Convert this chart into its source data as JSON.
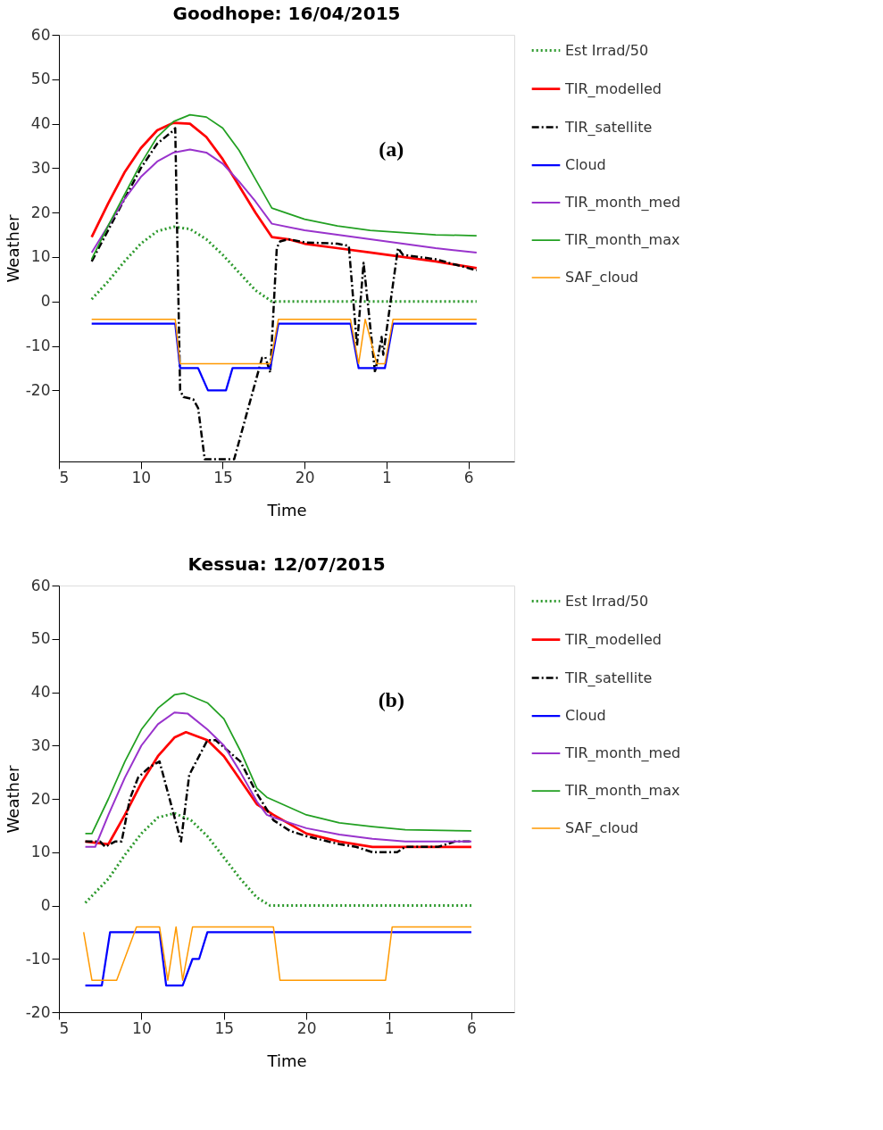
{
  "chart_data": [
    {
      "type": "line",
      "title": "Goodhope: 16/04/2015",
      "xlabel": "Time",
      "ylabel": "Weather",
      "annotations": [
        "(a)"
      ],
      "xlim": [
        "2015-04-16T05:00",
        "2015-04-17T08:48"
      ],
      "xticks": [
        {
          "value": "2015-04-16T05:00",
          "label": "5"
        },
        {
          "value": "2015-04-16T10:00",
          "label": "10"
        },
        {
          "value": "2015-04-16T15:00",
          "label": "15"
        },
        {
          "value": "2015-04-16T20:00",
          "label": "20"
        },
        {
          "value": "2015-04-17T01:00",
          "label": "1"
        },
        {
          "value": "2015-04-17T06:00",
          "label": "6"
        }
      ],
      "ylim": [
        -36,
        60
      ],
      "yticks": [
        -20,
        -10,
        0,
        10,
        20,
        30,
        40,
        50,
        60
      ],
      "grid": false,
      "legend": "top right",
      "marker": "none",
      "series": [
        {
          "name": "Est Irrad/50",
          "color": "#2e9a2e",
          "line_style": "dotted",
          "x": [
            "2015-04-16T07:00",
            "2015-04-16T08:00",
            "2015-04-16T09:00",
            "2015-04-16T10:00",
            "2015-04-16T11:00",
            "2015-04-16T12:00",
            "2015-04-16T13:00",
            "2015-04-16T14:00",
            "2015-04-16T15:00",
            "2015-04-16T16:00",
            "2015-04-16T17:00",
            "2015-04-16T18:00",
            "2015-04-17T06:30"
          ],
          "values": [
            0.5,
            4.5,
            9,
            13,
            15.8,
            16.8,
            16.3,
            14,
            10.5,
            6.5,
            2.5,
            0,
            0
          ]
        },
        {
          "name": "TIR_modelled",
          "color": "#ff0000",
          "line_style": "solid",
          "x": [
            "2015-04-16T07:00",
            "2015-04-16T08:00",
            "2015-04-16T09:00",
            "2015-04-16T10:00",
            "2015-04-16T11:00",
            "2015-04-16T12:00",
            "2015-04-16T13:00",
            "2015-04-16T14:00",
            "2015-04-16T15:00",
            "2015-04-16T16:00",
            "2015-04-16T17:00",
            "2015-04-16T18:00",
            "2015-04-16T19:00",
            "2015-04-16T20:00",
            "2015-04-16T22:00",
            "2015-04-17T00:00",
            "2015-04-17T02:00",
            "2015-04-17T04:00",
            "2015-04-17T06:30"
          ],
          "values": [
            14.5,
            22,
            29,
            34.5,
            38.5,
            40.2,
            40,
            37,
            32,
            26,
            20,
            14.5,
            14,
            13,
            12,
            11,
            10,
            9,
            7.5
          ]
        },
        {
          "name": "TIR_satellite",
          "color": "#000000",
          "line_style": "dashed",
          "x": [
            "2015-04-16T07:00",
            "2015-04-16T08:00",
            "2015-04-16T09:00",
            "2015-04-16T10:00",
            "2015-04-16T11:00",
            "2015-04-16T12:00",
            "2015-04-16T12:06",
            "2015-04-16T12:24",
            "2015-04-16T12:36",
            "2015-04-16T13:12",
            "2015-04-16T13:30",
            "2015-04-16T13:54",
            "2015-04-16T15:42",
            "2015-04-16T17:24",
            "2015-04-16T17:36",
            "2015-04-16T17:54",
            "2015-04-16T18:18",
            "2015-04-16T18:30",
            "2015-04-16T19:00",
            "2015-04-16T20:00",
            "2015-04-16T22:00",
            "2015-04-16T22:42",
            "2015-04-16T23:12",
            "2015-04-16T23:36",
            "2015-04-17T00:18",
            "2015-04-17T00:42",
            "2015-04-17T00:48",
            "2015-04-17T01:42",
            "2015-04-17T02:00",
            "2015-04-17T03:00",
            "2015-04-17T04:00",
            "2015-04-17T05:00",
            "2015-04-17T06:30"
          ],
          "values": [
            9,
            16,
            23,
            30,
            35.5,
            38.5,
            39,
            -20,
            -21.5,
            -22,
            -24,
            -35.5,
            -35.5,
            -12.7,
            -12.5,
            -16,
            12,
            13.5,
            14,
            13.3,
            13,
            12.5,
            -10,
            8.7,
            -16,
            -8,
            -12,
            12,
            10.5,
            10,
            9.5,
            8.5,
            7
          ]
        },
        {
          "name": "Cloud",
          "color": "#0000ff",
          "line_style": "solid",
          "x": [
            "2015-04-16T07:00",
            "2015-04-16T12:06",
            "2015-04-16T12:24",
            "2015-04-16T13:30",
            "2015-04-16T14:06",
            "2015-04-16T15:12",
            "2015-04-16T15:36",
            "2015-04-16T17:54",
            "2015-04-16T18:24",
            "2015-04-16T22:48",
            "2015-04-16T23:18",
            "2015-04-17T00:54",
            "2015-04-17T01:24",
            "2015-04-17T06:30"
          ],
          "values": [
            -5,
            -5,
            -15,
            -15,
            -20,
            -20,
            -15,
            -15,
            -5,
            -5,
            -15,
            -15,
            -5,
            -5
          ]
        },
        {
          "name": "TIR_month_med",
          "color": "#9933cc",
          "line_style": "solid",
          "x": [
            "2015-04-16T07:00",
            "2015-04-16T08:00",
            "2015-04-16T09:00",
            "2015-04-16T10:00",
            "2015-04-16T11:00",
            "2015-04-16T12:00",
            "2015-04-16T13:00",
            "2015-04-16T14:00",
            "2015-04-16T15:00",
            "2015-04-16T16:00",
            "2015-04-16T17:00",
            "2015-04-16T18:00",
            "2015-04-16T20:00",
            "2015-04-16T22:00",
            "2015-04-17T00:00",
            "2015-04-17T02:00",
            "2015-04-17T04:00",
            "2015-04-17T06:30"
          ],
          "values": [
            11,
            17,
            23,
            28,
            31.5,
            33.5,
            34.2,
            33.5,
            31,
            27,
            22.5,
            17.5,
            16,
            15,
            14,
            13,
            12,
            11
          ]
        },
        {
          "name": "TIR_month_max",
          "color": "#22a022",
          "line_style": "solid",
          "x": [
            "2015-04-16T07:00",
            "2015-04-16T08:00",
            "2015-04-16T09:00",
            "2015-04-16T10:00",
            "2015-04-16T11:00",
            "2015-04-16T12:00",
            "2015-04-16T13:00",
            "2015-04-16T14:00",
            "2015-04-16T15:00",
            "2015-04-16T16:00",
            "2015-04-16T17:00",
            "2015-04-16T18:00",
            "2015-04-16T20:00",
            "2015-04-16T22:00",
            "2015-04-17T00:00",
            "2015-04-17T02:00",
            "2015-04-17T04:00",
            "2015-04-17T06:30"
          ],
          "values": [
            9.5,
            17,
            24,
            31,
            37,
            40.5,
            42,
            41.5,
            39,
            34,
            27.5,
            21,
            18.5,
            17,
            16,
            15.5,
            15,
            14.8
          ]
        },
        {
          "name": "SAF_cloud",
          "color": "#ff9900",
          "line_style": "solid",
          "x": [
            "2015-04-16T07:00",
            "2015-04-16T12:06",
            "2015-04-16T12:24",
            "2015-04-16T17:54",
            "2015-04-16T18:24",
            "2015-04-16T22:48",
            "2015-04-16T23:18",
            "2015-04-16T23:42",
            "2015-04-17T00:24",
            "2015-04-17T00:54",
            "2015-04-17T01:24",
            "2015-04-17T06:30"
          ],
          "values": [
            -4,
            -4,
            -14,
            -14,
            -4,
            -4,
            -14,
            -4,
            -14,
            -14,
            -4,
            -4
          ]
        }
      ]
    },
    {
      "type": "line",
      "title": "Kessua: 12/07/2015",
      "xlabel": "Time",
      "ylabel": "Weather",
      "annotations": [
        "(b)"
      ],
      "xlim": [
        "2015-07-12T05:00",
        "2015-07-13T08:36"
      ],
      "xticks": [
        {
          "value": "2015-07-12T05:00",
          "label": "5"
        },
        {
          "value": "2015-07-12T10:00",
          "label": "10"
        },
        {
          "value": "2015-07-12T15:00",
          "label": "15"
        },
        {
          "value": "2015-07-12T20:00",
          "label": "20"
        },
        {
          "value": "2015-07-13T01:00",
          "label": "1"
        },
        {
          "value": "2015-07-13T06:00",
          "label": "6"
        }
      ],
      "ylim": [
        -20,
        60
      ],
      "yticks": [
        -20,
        -10,
        0,
        10,
        20,
        30,
        40,
        50,
        60
      ],
      "grid": false,
      "legend": "top right",
      "marker": "none",
      "series": [
        {
          "name": "Est Irrad/50",
          "color": "#2e9a2e",
          "line_style": "dotted",
          "x": [
            "2015-07-12T06:36",
            "2015-07-12T08:00",
            "2015-07-12T09:00",
            "2015-07-12T10:00",
            "2015-07-12T11:00",
            "2015-07-12T12:00",
            "2015-07-12T13:00",
            "2015-07-12T14:00",
            "2015-07-12T15:00",
            "2015-07-12T16:00",
            "2015-07-12T17:00",
            "2015-07-12T17:48",
            "2015-07-13T06:00"
          ],
          "values": [
            0.5,
            5,
            9.5,
            13.5,
            16.5,
            17.3,
            16,
            13,
            9,
            5,
            1.5,
            0,
            0
          ]
        },
        {
          "name": "TIR_modelled",
          "color": "#ff0000",
          "line_style": "solid",
          "x": [
            "2015-07-12T06:36",
            "2015-07-12T08:00",
            "2015-07-12T09:00",
            "2015-07-12T10:00",
            "2015-07-12T11:00",
            "2015-07-12T12:00",
            "2015-07-12T12:42",
            "2015-07-12T14:00",
            "2015-07-12T15:00",
            "2015-07-12T16:00",
            "2015-07-12T17:00",
            "2015-07-12T18:00",
            "2015-07-12T20:00",
            "2015-07-12T22:00",
            "2015-07-13T00:00",
            "2015-07-13T06:00"
          ],
          "values": [
            12,
            11.5,
            17,
            23,
            28,
            31.5,
            32.5,
            31,
            28,
            23.5,
            19,
            17,
            13.5,
            12,
            11,
            11
          ]
        },
        {
          "name": "TIR_satellite",
          "color": "#000000",
          "line_style": "dashed",
          "x": [
            "2015-07-12T06:36",
            "2015-07-12T07:30",
            "2015-07-12T07:48",
            "2015-07-12T08:24",
            "2015-07-12T08:48",
            "2015-07-12T09:18",
            "2015-07-12T09:48",
            "2015-07-12T10:30",
            "2015-07-12T11:06",
            "2015-07-12T12:24",
            "2015-07-12T12:54",
            "2015-07-12T14:00",
            "2015-07-12T14:30",
            "2015-07-12T16:00",
            "2015-07-12T17:00",
            "2015-07-12T18:00",
            "2015-07-12T19:00",
            "2015-07-12T20:00",
            "2015-07-12T22:00",
            "2015-07-12T23:00",
            "2015-07-13T00:00",
            "2015-07-13T01:30",
            "2015-07-13T02:00",
            "2015-07-13T04:00",
            "2015-07-13T05:00",
            "2015-07-13T06:00"
          ],
          "values": [
            12,
            12,
            11,
            12,
            12,
            20,
            24,
            26,
            27,
            12,
            24.5,
            31,
            31,
            27,
            21,
            16,
            14,
            13,
            11.5,
            11,
            10,
            10,
            11,
            11,
            12,
            12
          ]
        },
        {
          "name": "Cloud",
          "color": "#0000ff",
          "line_style": "solid",
          "x": [
            "2015-07-12T06:36",
            "2015-07-12T07:36",
            "2015-07-12T08:06",
            "2015-07-12T11:06",
            "2015-07-12T11:30",
            "2015-07-12T12:30",
            "2015-07-12T13:06",
            "2015-07-12T13:30",
            "2015-07-12T14:00",
            "2015-07-13T06:00"
          ],
          "values": [
            -15,
            -15,
            -5,
            -5,
            -15,
            -15,
            -10,
            -10,
            -5,
            -5
          ]
        },
        {
          "name": "TIR_month_med",
          "color": "#9933cc",
          "line_style": "solid",
          "x": [
            "2015-07-12T06:36",
            "2015-07-12T07:12",
            "2015-07-12T08:00",
            "2015-07-12T09:00",
            "2015-07-12T10:00",
            "2015-07-12T11:00",
            "2015-07-12T12:00",
            "2015-07-12T12:48",
            "2015-07-12T14:00",
            "2015-07-12T15:00",
            "2015-07-12T16:00",
            "2015-07-12T17:00",
            "2015-07-12T17:36",
            "2015-07-12T18:00",
            "2015-07-12T20:00",
            "2015-07-12T22:00",
            "2015-07-13T00:00",
            "2015-07-13T02:00",
            "2015-07-13T06:00"
          ],
          "values": [
            11,
            11,
            17,
            24,
            30,
            34,
            36.2,
            36,
            33,
            30,
            25,
            19.5,
            17,
            16.5,
            14.5,
            13.3,
            12.5,
            12,
            12
          ]
        },
        {
          "name": "TIR_month_max",
          "color": "#22a022",
          "line_style": "solid",
          "x": [
            "2015-07-12T06:36",
            "2015-07-12T07:00",
            "2015-07-12T08:00",
            "2015-07-12T09:00",
            "2015-07-12T10:00",
            "2015-07-12T11:00",
            "2015-07-12T12:00",
            "2015-07-12T12:36",
            "2015-07-12T14:00",
            "2015-07-12T15:00",
            "2015-07-12T16:00",
            "2015-07-12T17:00",
            "2015-07-12T17:36",
            "2015-07-12T20:00",
            "2015-07-12T22:00",
            "2015-07-13T00:00",
            "2015-07-13T02:00",
            "2015-07-13T06:00"
          ],
          "values": [
            13.5,
            13.5,
            20,
            27,
            33,
            37,
            39.5,
            39.8,
            38,
            35,
            29,
            22,
            20.3,
            17,
            15.5,
            14.8,
            14.2,
            14
          ]
        },
        {
          "name": "SAF_cloud",
          "color": "#ff9900",
          "line_style": "solid",
          "x": [
            "2015-07-12T06:30",
            "2015-07-12T07:00",
            "2015-07-12T08:30",
            "2015-07-12T09:42",
            "2015-07-12T11:06",
            "2015-07-12T11:36",
            "2015-07-12T12:06",
            "2015-07-12T12:30",
            "2015-07-12T13:06",
            "2015-07-12T18:00",
            "2015-07-12T18:24",
            "2015-07-13T00:48",
            "2015-07-13T01:12",
            "2015-07-13T06:00"
          ],
          "values": [
            -5,
            -14,
            -14,
            -4,
            -4,
            -14,
            -4,
            -14,
            -4,
            -4,
            -14,
            -14,
            -4,
            -4
          ]
        }
      ]
    }
  ]
}
